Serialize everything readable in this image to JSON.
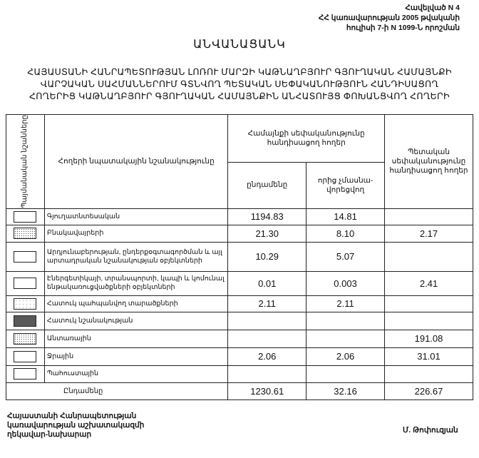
{
  "annex": [
    "Հավելված N 4",
    "ՀՀ կառավարության 2005 թվականի",
    "հուլիսի 7-ի N 1099-Ն որոշման"
  ],
  "title": "ԱՆՎԱՆԱՑԱՆԿ",
  "subtitle": [
    "ՀԱՅԱՍՏԱՆԻ ՀԱՆՐԱՊԵՏՈՒԹՅԱՆ ԼՈՌՈՒ ՄԱՐԶԻ ԿԱԹՆԱՂԲՅՈՒՐ ԳՅՈՒՂԱԿԱՆ ՀԱՄԱՅՆՔԻ",
    "ՎԱՐՉԱԿԱՆ ՍԱՀՄԱՆՆԵՐՈՒՄ ԳՏՆՎՈՂ ՊԵՏԱԿԱՆ ՍԵՓԱԿԱՆՈՒԹՅՈՒՆ ՀԱՆԴԻՍԱՑՈՂ",
    "ՀՈՂԵՐԻՑ ԿԱԹՆԱՂԲՅՈՒՐ ԳՅՈՒՂԱԿԱՆ ՀԱՄԱՅՆՔԻՆ ԱՆՀԱՏՈՒՅՑ ՓՈԽԱՆՑՎՈՂ ՀՈՂԵՐԻ"
  ],
  "table": {
    "headers": {
      "symbols": "Պայմանական նշանները",
      "purpose": "Հողերի նպատակային նշանակությունը",
      "community": "Համայնքի սեփականությունը հանդիսացող հողեր",
      "total": "ընդամենը",
      "of_which": "որից չմասնա-վորեցվող",
      "state": "Պետական սեփականությունը հանդիսացող հողեր"
    },
    "rows": [
      {
        "symbol": "blank",
        "purpose": "Գյուղատնտեսական",
        "total": "1194.83",
        "of_which": "14.81",
        "state": ""
      },
      {
        "symbol": "dots",
        "purpose": "Բնակավայրերի",
        "total": "21.30",
        "of_which": "8.10",
        "state": "2.17"
      },
      {
        "symbol": "blank",
        "purpose": "Արդյունաբերության, ընդերքօգտագործման և այլ արտադրական նշանակության օբյեկտների",
        "total": "10.29",
        "of_which": "5.07",
        "state": ""
      },
      {
        "symbol": "blank",
        "purpose": "Էներգետիկայի, տրանսպորտի, կապի և կոմունալ ենթակառուցվածքների օբյեկտների",
        "total": "0.01",
        "of_which": "0.003",
        "state": "2.41"
      },
      {
        "symbol": "light",
        "purpose": "Հատուկ պահպանվող տարածքների",
        "total": "2.11",
        "of_which": "2.11",
        "state": ""
      },
      {
        "symbol": "dense",
        "purpose": "Հատուկ նշանակության",
        "total": "",
        "of_which": "",
        "state": ""
      },
      {
        "symbol": "dots",
        "purpose": "Անտառային",
        "total": "",
        "of_which": "",
        "state": "191.08"
      },
      {
        "symbol": "blank",
        "purpose": "Ջրային",
        "total": "2.06",
        "of_which": "2.06",
        "state": "31.01"
      },
      {
        "symbol": "blank",
        "purpose": "Պահուստային",
        "total": "",
        "of_which": "",
        "state": ""
      }
    ],
    "total_row": {
      "label": "Ընդամենը",
      "total": "1230.61",
      "of_which": "32.16",
      "state": "226.67"
    }
  },
  "footer": {
    "position": [
      "Հայաստանի Հանրապետության",
      "կառավարության աշխատակազմի",
      "ղեկավար-նախարար"
    ],
    "signatory": "Մ. Թոփուզյան"
  }
}
